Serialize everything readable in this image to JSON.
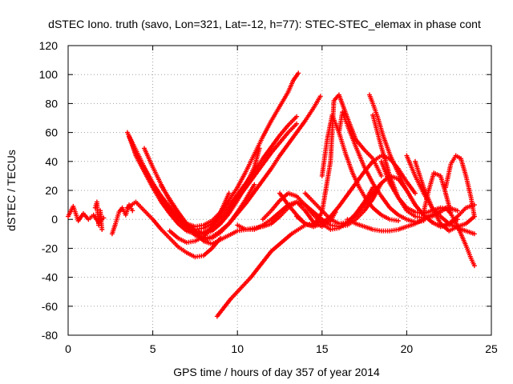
{
  "chart_data": {
    "type": "scatter",
    "title": "dSTEC Iono. truth (savo, Lon=321, Lat=-12, h=77): STEC-STEC_elemax in phase cont",
    "xlabel": "GPS time / hours of day 357 of year 2014",
    "ylabel": "dSTEC  / TECUs",
    "xlim": [
      0,
      25
    ],
    "ylim": [
      -80,
      120
    ],
    "xticks": [
      0,
      5,
      10,
      15,
      20,
      25
    ],
    "yticks": [
      -80,
      -60,
      -40,
      -20,
      0,
      20,
      40,
      60,
      80,
      100,
      120
    ],
    "grid": true,
    "legend": "none",
    "marker": "+",
    "color": "#ff0000",
    "series": [
      {
        "x": [
          0.0,
          0.3,
          0.6,
          0.9,
          1.2,
          1.5,
          1.8,
          2.1
        ],
        "y": [
          2,
          9,
          -1,
          4,
          0,
          3,
          -2,
          1
        ]
      },
      {
        "x": [
          1.6,
          1.7,
          1.8,
          1.9,
          2.0
        ],
        "y": [
          8,
          12,
          -4,
          6,
          -7
        ]
      },
      {
        "x": [
          2.6,
          2.8,
          3.0,
          3.2,
          3.4,
          3.6,
          3.8
        ],
        "y": [
          -10,
          -3,
          5,
          8,
          3,
          10,
          6
        ]
      },
      {
        "x": [
          3.5,
          4.0,
          4.5,
          5.0,
          5.5,
          6.0,
          6.5,
          7.0,
          7.5,
          8.0,
          8.5,
          9.0,
          9.5,
          10.0,
          10.5,
          11.0,
          11.5,
          12.0,
          12.5,
          13.0,
          13.3,
          13.6
        ],
        "y": [
          60,
          48,
          36,
          25,
          16,
          8,
          1,
          -3,
          -5,
          -4,
          -1,
          5,
          13,
          22,
          33,
          45,
          57,
          68,
          78,
          88,
          96,
          101
        ]
      },
      {
        "x": [
          3.6,
          4.0,
          4.5,
          5.0,
          5.5,
          6.0,
          6.5,
          7.0,
          7.5,
          8.0,
          8.5,
          9.0,
          9.5,
          10.0,
          10.5,
          11.0,
          11.5,
          12.0,
          12.5,
          13.0,
          13.5
        ],
        "y": [
          57,
          45,
          34,
          23,
          14,
          6,
          0,
          -5,
          -7,
          -6,
          -3,
          2,
          9,
          17,
          25,
          33,
          42,
          50,
          58,
          65,
          71
        ]
      },
      {
        "x": [
          3.7,
          4.0,
          4.5,
          5.0,
          5.5,
          6.0,
          6.5,
          7.0,
          7.5,
          8.0,
          8.5,
          9.0,
          9.5,
          10.0,
          10.5,
          11.0,
          11.5,
          12.0,
          12.5,
          13.0,
          13.5
        ],
        "y": [
          55,
          44,
          33,
          22,
          12,
          4,
          -3,
          -8,
          -10,
          -9,
          -6,
          -1,
          6,
          14,
          22,
          30,
          38,
          46,
          53,
          60,
          66
        ]
      },
      {
        "x": [
          4.0,
          4.5,
          5.0,
          5.5,
          6.0,
          6.5,
          7.0,
          7.5,
          8.0,
          8.5,
          9.0,
          9.5,
          10.0,
          10.5,
          11.0,
          11.5,
          12.0,
          12.5,
          13.0,
          13.5,
          14.0,
          14.5,
          14.9
        ],
        "y": [
          45,
          35,
          25,
          16,
          8,
          1,
          -5,
          -10,
          -13,
          -12,
          -8,
          -3,
          4,
          11,
          19,
          27,
          35,
          44,
          52,
          60,
          68,
          77,
          85
        ]
      },
      {
        "x": [
          4.5,
          5.0,
          5.5,
          6.0,
          6.5,
          7.0,
          7.5,
          8.0,
          8.5,
          9.0,
          9.5,
          10.0,
          10.5,
          11.0
        ],
        "y": [
          49,
          36,
          24,
          13,
          3,
          -5,
          -11,
          -14,
          -13,
          -9,
          -3,
          5,
          14,
          24
        ]
      },
      {
        "x": [
          3.5,
          4.0,
          4.5,
          5.0,
          5.5,
          6.0,
          6.5,
          7.0,
          7.5,
          8.0,
          8.5,
          9.0
        ],
        "y": [
          8,
          12,
          6,
          0,
          -7,
          -13,
          -19,
          -23,
          -26,
          -25,
          -20,
          -13
        ]
      },
      {
        "x": [
          5.5,
          6.0,
          6.5,
          7.0,
          7.5,
          8.0,
          8.5,
          9.0,
          9.5,
          10.0,
          10.5,
          11.0,
          11.3
        ],
        "y": [
          23,
          14,
          5,
          -3,
          -8,
          -10,
          -8,
          -3,
          4,
          13,
          24,
          36,
          49
        ]
      },
      {
        "x": [
          6.0,
          6.5,
          7.0,
          7.5,
          8.0,
          8.5,
          9.0,
          9.5
        ],
        "y": [
          -8,
          -13,
          -16,
          -15,
          -12,
          -5,
          5,
          18
        ]
      },
      {
        "x": [
          7.5,
          8.0,
          8.5,
          9.0,
          9.5,
          10.0,
          10.5,
          11.0,
          11.5,
          12.0,
          12.5,
          13.0,
          13.5,
          14.0,
          14.5,
          15.0,
          15.5,
          15.8
        ],
        "y": [
          -8,
          -15,
          -17,
          -14,
          -11,
          -8,
          -7,
          -6,
          -5,
          -3,
          2,
          8,
          12,
          6,
          -2,
          -5,
          -1,
          5
        ]
      },
      {
        "x": [
          8.8,
          9.2,
          9.6,
          10.0,
          10.4,
          10.8,
          11.2,
          11.6,
          12.0,
          12.4,
          12.8,
          13.2,
          13.6,
          14.0,
          14.4,
          14.8,
          15.2
        ],
        "y": [
          -67,
          -61,
          -55,
          -50,
          -45,
          -40,
          -34,
          -28,
          -22,
          -18,
          -14,
          -10,
          -7,
          -4,
          -3,
          -2,
          -1
        ]
      },
      {
        "x": [
          10.0,
          10.5,
          11.0,
          11.5,
          12.0,
          12.5,
          13.0,
          13.5,
          14.0,
          14.5,
          15.0,
          15.5,
          16.0,
          16.5,
          17.0,
          17.5,
          18.0,
          18.5
        ],
        "y": [
          -4,
          -7,
          -7,
          -4,
          0,
          5,
          10,
          12,
          10,
          5,
          0,
          -4,
          -5,
          -4,
          0,
          6,
          14,
          25
        ]
      },
      {
        "x": [
          11.5,
          12.0,
          12.5,
          13.0,
          13.5,
          14.0,
          14.5,
          15.0,
          15.5,
          16.0,
          16.5,
          17.0,
          17.5,
          18.0
        ],
        "y": [
          0,
          6,
          13,
          18,
          16,
          10,
          3,
          -3,
          -7,
          -6,
          -2,
          4,
          12,
          22
        ]
      },
      {
        "x": [
          12.5,
          13.0,
          13.5,
          14.0,
          14.5,
          15.0,
          15.5,
          16.0,
          16.5,
          17.0,
          17.5,
          18.0,
          18.5,
          19.0,
          19.5,
          20.0,
          20.5
        ],
        "y": [
          18,
          10,
          3,
          -3,
          -5,
          -3,
          2,
          9,
          17,
          25,
          33,
          40,
          44,
          42,
          35,
          26,
          18
        ]
      },
      {
        "x": [
          13.5,
          14.0,
          14.5,
          15.0,
          15.5,
          15.7,
          16.0,
          16.5,
          17.0,
          17.5,
          18.0,
          18.5
        ],
        "y": [
          2,
          -3,
          -5,
          5,
          40,
          82,
          86,
          70,
          55,
          48,
          42,
          30
        ]
      },
      {
        "x": [
          14.0,
          14.5,
          15.0,
          15.5,
          16.0,
          16.5,
          17.0,
          17.5,
          18.0,
          18.5,
          19.0,
          19.5,
          20.0,
          20.5,
          21.0,
          21.5,
          22.0,
          22.5,
          23.0
        ],
        "y": [
          18,
          12,
          6,
          0,
          -3,
          -2,
          3,
          10,
          18,
          25,
          30,
          28,
          20,
          10,
          3,
          -2,
          -5,
          -4,
          0
        ]
      },
      {
        "x": [
          15.0,
          15.3,
          15.6,
          16.0,
          16.4,
          16.8,
          17.2,
          17.6,
          18.0,
          18.5,
          19.0,
          19.5
        ],
        "y": [
          30,
          55,
          72,
          60,
          45,
          32,
          22,
          14,
          8,
          3,
          0,
          -1
        ]
      },
      {
        "x": [
          16.0,
          16.2,
          16.5,
          17.0,
          17.5,
          18.0,
          18.5,
          19.0,
          19.5,
          20.0,
          20.5,
          21.0
        ],
        "y": [
          60,
          74,
          65,
          50,
          36,
          25,
          16,
          8,
          3,
          0,
          -2,
          -1
        ]
      },
      {
        "x": [
          17.8,
          18.0,
          18.3,
          18.6,
          19.0,
          19.5,
          20.0,
          20.5,
          21.0,
          21.5,
          22.0,
          22.5,
          23.0,
          23.5,
          24.0
        ],
        "y": [
          86,
          80,
          70,
          58,
          45,
          32,
          20,
          10,
          3,
          -2,
          -5,
          -3,
          2,
          8,
          10
        ]
      },
      {
        "x": [
          18.0,
          18.5,
          19.0,
          19.5,
          20.0,
          20.5,
          21.0,
          21.5,
          22.0
        ],
        "y": [
          72,
          50,
          30,
          15,
          6,
          2,
          1,
          2,
          5
        ]
      },
      {
        "x": [
          18.5,
          19.0,
          19.5,
          20.0,
          20.5,
          21.0,
          21.5,
          22.0,
          22.5
        ],
        "y": [
          40,
          25,
          15,
          8,
          5,
          4,
          6,
          8,
          7
        ]
      },
      {
        "x": [
          16.5,
          17.0,
          17.5,
          18.0,
          18.5,
          19.0,
          19.5,
          20.0,
          20.5,
          21.0,
          21.5,
          22.0,
          22.5,
          23.0
        ],
        "y": [
          0,
          -3,
          -5,
          -7,
          -8,
          -8,
          -7,
          -5,
          -3,
          0,
          3,
          6,
          8,
          6
        ]
      },
      {
        "x": [
          20.0,
          20.5,
          21.0,
          21.5,
          22.0,
          22.5,
          23.0,
          23.5,
          24.0
        ],
        "y": [
          44,
          30,
          18,
          8,
          2,
          -3,
          -6,
          -8,
          -10
        ]
      },
      {
        "x": [
          20.5,
          21.0,
          21.5,
          22.0,
          22.5,
          23.0,
          23.5,
          24.0
        ],
        "y": [
          40,
          22,
          8,
          -3,
          -8,
          -5,
          -3,
          2
        ]
      },
      {
        "x": [
          21.0,
          21.3,
          21.6,
          22.0,
          22.3,
          22.6
        ],
        "y": [
          5,
          20,
          32,
          30,
          18,
          5
        ]
      },
      {
        "x": [
          22.3,
          22.6,
          22.9,
          23.2,
          23.5,
          23.8,
          24.0
        ],
        "y": [
          22,
          38,
          44,
          42,
          30,
          15,
          2
        ]
      },
      {
        "x": [
          22.0,
          22.3,
          22.6,
          22.9,
          23.2,
          23.5,
          23.8,
          24.0
        ],
        "y": [
          5,
          8,
          4,
          -2,
          -10,
          -18,
          -27,
          -32
        ]
      }
    ]
  }
}
